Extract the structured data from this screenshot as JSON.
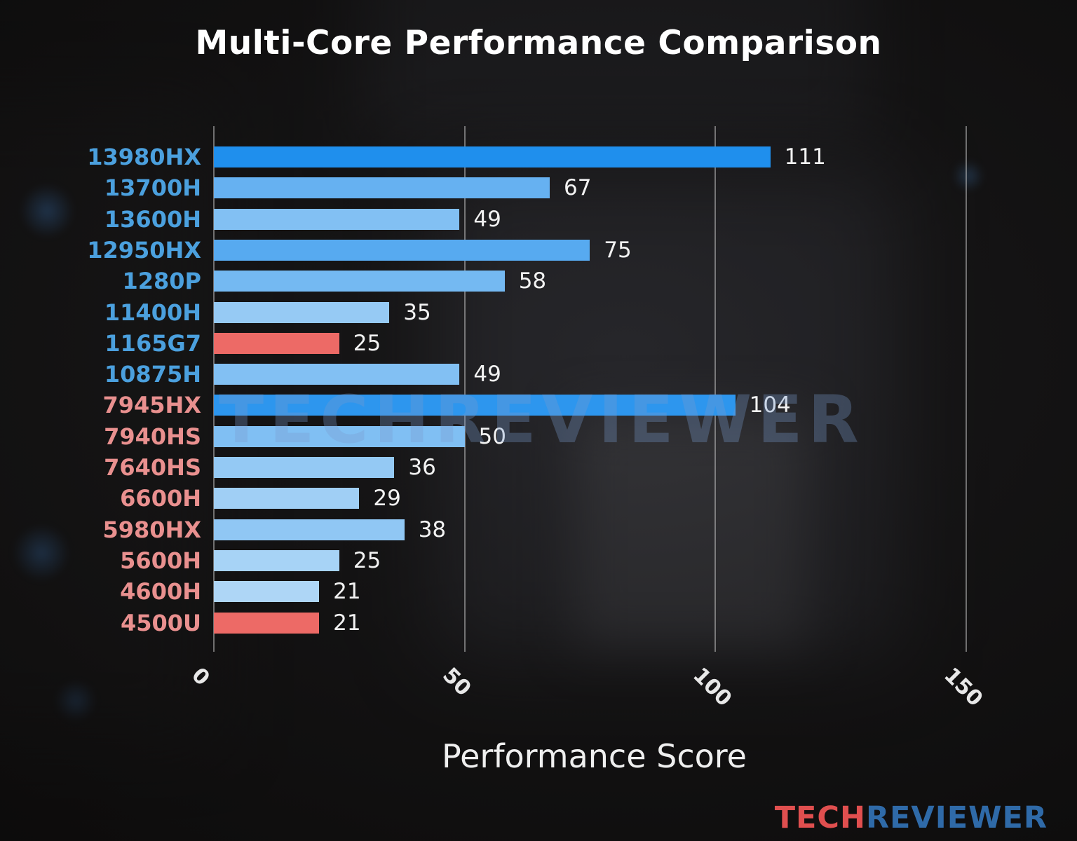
{
  "watermark": {
    "text": "TECHREVIEWER"
  },
  "logo": {
    "tech": "TECH",
    "reviewer": "REVIEWER",
    "tech_color": "#e04f4f",
    "reviewer_color": "#2f6aa8"
  },
  "chart_data": {
    "type": "bar",
    "orientation": "horizontal",
    "title": "Multi-Core Performance Comparison",
    "xlabel": "Performance Score",
    "xlim": [
      0,
      160
    ],
    "xticks": [
      0,
      50,
      100,
      150
    ],
    "grid": true,
    "legend": false,
    "categories": [
      "13980HX",
      "13700H",
      "13600H",
      "12950HX",
      "1280P",
      "11400H",
      "1165G7",
      "10875H",
      "7945HX",
      "7940HS",
      "7640HS",
      "6600H",
      "5980HX",
      "5600H",
      "4600H",
      "4500U"
    ],
    "values": [
      111,
      67,
      49,
      75,
      58,
      35,
      25,
      49,
      104,
      50,
      36,
      29,
      38,
      25,
      21,
      21
    ],
    "bar_colors": [
      "#1f8fed",
      "#66b1f1",
      "#82c0f3",
      "#57aaf0",
      "#74b9f2",
      "#96caf4",
      "#ed6a66",
      "#82c0f3",
      "#2d96ee",
      "#80bff3",
      "#94c9f4",
      "#a0cff5",
      "#90c7f4",
      "#a7d3f6",
      "#aed6f6",
      "#ed6a66"
    ],
    "label_colors": [
      "#4ba0de",
      "#4ba0de",
      "#4ba0de",
      "#4ba0de",
      "#4ba0de",
      "#4ba0de",
      "#4ba0de",
      "#4ba0de",
      "#e9908f",
      "#e9908f",
      "#e9908f",
      "#e9908f",
      "#e9908f",
      "#e9908f",
      "#e9908f",
      "#e9908f"
    ],
    "highlight_color": "#ed6a66",
    "intel_label_color": "#4ba0de",
    "amd_label_color": "#e9908f",
    "value_label_color": "#f2f2f2",
    "gridline_color": "#cdcdcd"
  }
}
